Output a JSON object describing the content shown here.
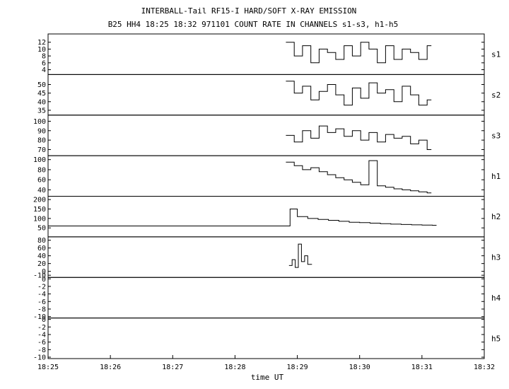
{
  "chart_data": {
    "type": "line",
    "title": "INTERBALL-Tail RF15-I HARD/SOFT X-RAY EMISSION",
    "subtitle": "B25 HH4 18:25 18:32 971101  COUNT RATE IN CHANNELS s1-s3, h1-h5",
    "xlabel": "time UT",
    "x_ticks": [
      "18:25",
      "18:26",
      "18:27",
      "18:28",
      "18:29",
      "18:30",
      "18:31",
      "18:32"
    ],
    "xlim": [
      "18:25",
      "18:32"
    ],
    "panels": [
      {
        "channel": "s1",
        "ylim": [
          3,
          14
        ],
        "y_ticks": [
          "4",
          "6",
          "8",
          "10",
          "12"
        ],
        "series": [
          {
            "x": [
              "18:28:49",
              "18:28:57",
              "18:29:05",
              "18:29:13",
              "18:29:21",
              "18:29:29",
              "18:29:37",
              "18:29:45",
              "18:29:53",
              "18:30:01",
              "18:30:09",
              "18:30:17",
              "18:30:25",
              "18:30:33",
              "18:30:41",
              "18:30:49",
              "18:30:57",
              "18:31:05"
            ],
            "values": [
              12,
              8,
              11,
              6,
              10,
              9,
              7,
              11,
              8,
              12,
              10,
              6,
              11,
              7,
              10,
              9,
              7,
              11
            ]
          }
        ]
      },
      {
        "channel": "s2",
        "ylim": [
          33,
          55
        ],
        "y_ticks": [
          "35",
          "40",
          "45",
          "50"
        ],
        "series": [
          {
            "x": [
              "18:28:49",
              "18:28:57",
              "18:29:05",
              "18:29:13",
              "18:29:21",
              "18:29:29",
              "18:29:37",
              "18:29:45",
              "18:29:53",
              "18:30:01",
              "18:30:09",
              "18:30:17",
              "18:30:25",
              "18:30:33",
              "18:30:41",
              "18:30:49",
              "18:30:57",
              "18:31:05"
            ],
            "values": [
              52,
              45,
              49,
              41,
              46,
              50,
              44,
              38,
              48,
              42,
              51,
              45,
              47,
              40,
              49,
              44,
              38,
              41
            ]
          }
        ]
      },
      {
        "channel": "s3",
        "ylim": [
          65,
          105
        ],
        "y_ticks": [
          "70",
          "80",
          "90",
          "100"
        ],
        "series": [
          {
            "x": [
              "18:28:49",
              "18:28:57",
              "18:29:05",
              "18:29:13",
              "18:29:21",
              "18:29:29",
              "18:29:37",
              "18:29:45",
              "18:29:53",
              "18:30:01",
              "18:30:09",
              "18:30:17",
              "18:30:25",
              "18:30:33",
              "18:30:41",
              "18:30:49",
              "18:30:57",
              "18:31:05"
            ],
            "values": [
              85,
              78,
              90,
              82,
              95,
              88,
              92,
              84,
              90,
              80,
              88,
              78,
              86,
              82,
              84,
              76,
              80,
              70
            ]
          }
        ]
      },
      {
        "channel": "h1",
        "ylim": [
          30,
          105
        ],
        "y_ticks": [
          "40",
          "60",
          "80",
          "100"
        ],
        "series": [
          {
            "x": [
              "18:28:49",
              "18:28:57",
              "18:29:05",
              "18:29:13",
              "18:29:21",
              "18:29:29",
              "18:29:37",
              "18:29:45",
              "18:29:53",
              "18:30:01",
              "18:30:09",
              "18:30:17",
              "18:30:25",
              "18:30:33",
              "18:30:41",
              "18:30:49",
              "18:30:57",
              "18:31:05"
            ],
            "values": [
              95,
              88,
              80,
              84,
              76,
              70,
              64,
              60,
              55,
              50,
              98,
              48,
              45,
              42,
              40,
              38,
              36,
              34
            ]
          }
        ]
      },
      {
        "channel": "h2",
        "ylim": [
          10,
          210
        ],
        "y_ticks": [
          "50",
          "100",
          "150",
          "200"
        ],
        "series": [
          {
            "x": [
              "18:25:00",
              "18:28:49",
              "18:28:53",
              "18:29:00",
              "18:29:10",
              "18:29:20",
              "18:29:30",
              "18:29:40",
              "18:29:50",
              "18:30:00",
              "18:30:10",
              "18:30:20",
              "18:30:30",
              "18:30:40",
              "18:30:50",
              "18:31:00",
              "18:31:10"
            ],
            "values": [
              60,
              60,
              150,
              110,
              100,
              95,
              90,
              85,
              80,
              78,
              75,
              72,
              70,
              68,
              66,
              65,
              64
            ]
          }
        ]
      },
      {
        "channel": "h3",
        "ylim": [
          -12,
          85
        ],
        "y_ticks": [
          "-10",
          "0",
          "20",
          "40",
          "60",
          "80"
        ],
        "series": [
          {
            "x": [
              "18:28:52",
              "18:28:55",
              "18:28:58",
              "18:29:01",
              "18:29:04",
              "18:29:07",
              "18:29:10"
            ],
            "values": [
              15,
              30,
              10,
              70,
              25,
              40,
              18
            ]
          }
        ]
      },
      {
        "channel": "h4",
        "ylim": [
          -10,
          0
        ],
        "y_ticks": [
          "-10",
          "-8",
          "-6",
          "-4",
          "-2",
          "0"
        ],
        "series": []
      },
      {
        "channel": "h5",
        "ylim": [
          -10,
          0
        ],
        "y_ticks": [
          "-10",
          "-8",
          "-6",
          "-4",
          "-2",
          "0"
        ],
        "series": []
      }
    ],
    "grid": false,
    "legend": "none"
  }
}
